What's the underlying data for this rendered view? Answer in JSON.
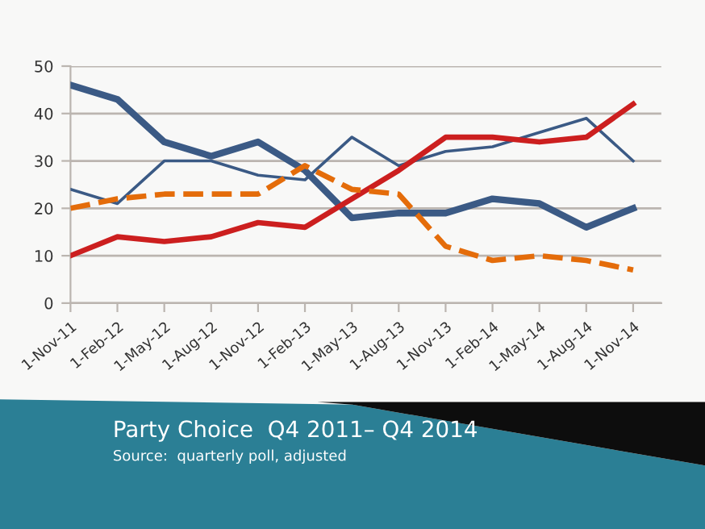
{
  "chart_data": {
    "type": "line",
    "title": "Party Choice  Q4 2011– Q4 2014",
    "annotations": [
      "Source:  quarterly poll, adjusted"
    ],
    "categories": [
      "1-Nov-11",
      "1-Feb-12",
      "1-May-12",
      "1-Aug-12",
      "1-Nov-12",
      "1-Feb-13",
      "1-May-13",
      "1-Aug-13",
      "1-Nov-13",
      "1-Feb-14",
      "1-May-14",
      "1-Aug-14",
      "1-Nov-14"
    ],
    "series": [
      {
        "color": "#3b5a85",
        "line_style": "solid",
        "values": [
          46,
          43,
          34,
          31,
          34,
          28,
          18,
          19,
          19,
          22,
          21,
          16,
          20
        ]
      },
      {
        "color": "#3b5a85",
        "line_style": "solid",
        "values": [
          24,
          21,
          30,
          30,
          27,
          26,
          35,
          29,
          32,
          33,
          36,
          39,
          30
        ]
      },
      {
        "color": "#cc1f1f",
        "line_style": "solid",
        "values": [
          10,
          14,
          13,
          14,
          17,
          16,
          22,
          28,
          35,
          35,
          34,
          35,
          42
        ]
      },
      {
        "color": "#e46c0a",
        "line_style": "dashed",
        "values": [
          20,
          22,
          23,
          23,
          23,
          29,
          24,
          23,
          12,
          9,
          10,
          9,
          7
        ]
      }
    ],
    "ylim": [
      0,
      50
    ],
    "yticks": [
      0,
      10,
      20,
      30,
      40,
      50
    ],
    "grid": "y",
    "marker": "none"
  }
}
